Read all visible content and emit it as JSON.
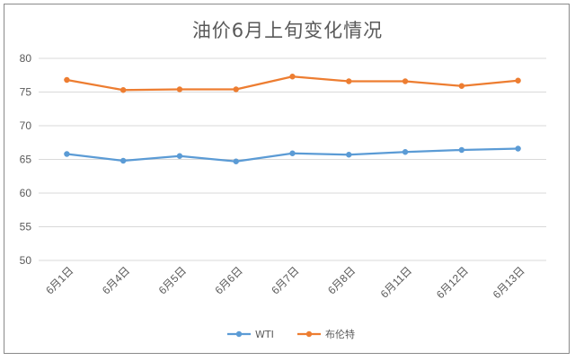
{
  "chart_data": {
    "type": "line",
    "title": "油价6月上旬变化情况",
    "xlabel": "",
    "ylabel": "",
    "categories": [
      "6月1日",
      "6月4日",
      "6月5日",
      "6月6日",
      "6月7日",
      "6月8日",
      "6月11日",
      "6月12日",
      "6月13日"
    ],
    "yticks": [
      "50",
      "55",
      "60",
      "65",
      "70",
      "75",
      "80"
    ],
    "ylim": [
      50,
      80
    ],
    "grid": true,
    "legend_position": "bottom",
    "series": [
      {
        "name": "WTI",
        "color": "#5b9bd5",
        "values": [
          65.8,
          64.8,
          65.5,
          64.7,
          65.9,
          65.7,
          66.1,
          66.4,
          66.6
        ]
      },
      {
        "name": "布伦特",
        "color": "#ed7d31",
        "values": [
          76.8,
          75.3,
          75.4,
          75.4,
          77.3,
          76.6,
          76.6,
          75.9,
          76.7
        ]
      }
    ]
  }
}
